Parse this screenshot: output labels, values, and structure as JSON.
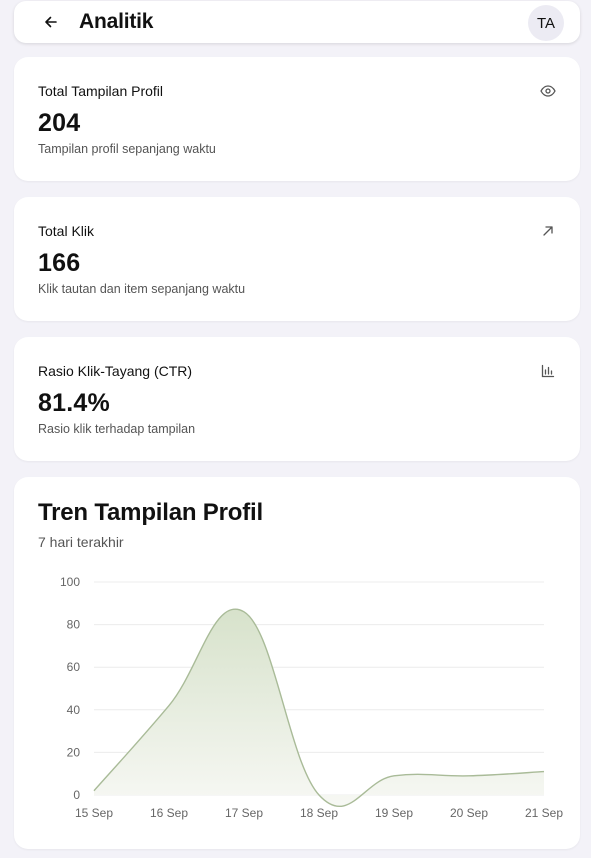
{
  "header": {
    "title": "Analitik",
    "avatar_initials": "TA",
    "back_icon": "arrow-left-icon"
  },
  "stats": [
    {
      "title": "Total Tampilan Profil",
      "value": "204",
      "description": "Tampilan profil sepanjang waktu",
      "icon": "eye-icon"
    },
    {
      "title": "Total Klik",
      "value": "166",
      "description": "Klik tautan dan item sepanjang waktu",
      "icon": "arrow-up-right-icon"
    },
    {
      "title": "Rasio Klik-Tayang (CTR)",
      "value": "81.4%",
      "description": "Rasio klik terhadap tampilan",
      "icon": "bar-chart-icon"
    }
  ],
  "chart_card": {
    "title": "Tren Tampilan Profil",
    "subtitle": "7 hari terakhir"
  },
  "colors": {
    "line": "#a9bb98",
    "fill_top": "#d7e2cb",
    "fill_bottom": "#f7f8f4",
    "grid": "#ececec"
  },
  "chart_data": {
    "type": "area",
    "categories": [
      "15 Sep",
      "16 Sep",
      "17 Sep",
      "18 Sep",
      "19 Sep",
      "20 Sep",
      "21 Sep"
    ],
    "values": [
      2,
      42,
      86,
      0,
      9,
      9,
      11
    ],
    "ylim": [
      0,
      100
    ],
    "yticks": [
      0,
      20,
      40,
      60,
      80,
      100
    ],
    "grid": true,
    "legend": "none"
  }
}
